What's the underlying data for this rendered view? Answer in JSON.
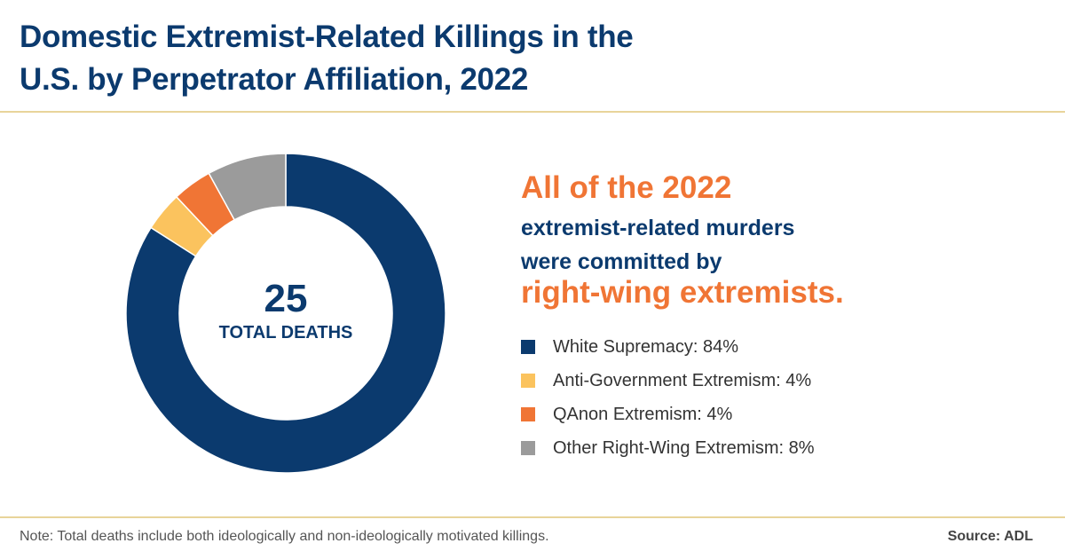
{
  "title_line1": "Domestic Extremist-Related Killings in the",
  "title_line2": "U.S. by Perpetrator Affiliation, 2022",
  "headline": {
    "line1": "All of the 2022",
    "line2": "extremist-related murders",
    "line3": "were committed by",
    "line4": "right-wing extremists."
  },
  "note": "Note: Total deaths include both ideologically and non-ideologically motivated killings.",
  "source": "Source: ADL",
  "chart_data": {
    "type": "pie",
    "variant": "donut",
    "center_value": "25",
    "center_label": "TOTAL DEATHS",
    "slices": [
      {
        "name": "White Supremacy",
        "value": 84,
        "label": "White Supremacy: 84%",
        "color": "#0b3a6e"
      },
      {
        "name": "Anti-Government Extremism",
        "value": 4,
        "label": "Anti-Government Extremism: 4%",
        "color": "#fbc35e"
      },
      {
        "name": "QAnon Extremism",
        "value": 4,
        "label": "QAnon Extremism: 4%",
        "color": "#f07535"
      },
      {
        "name": "Other Right-Wing Extremism",
        "value": 8,
        "label": "Other Right-Wing Extremism: 8%",
        "color": "#9b9b9b"
      }
    ],
    "legend_position": "right"
  }
}
